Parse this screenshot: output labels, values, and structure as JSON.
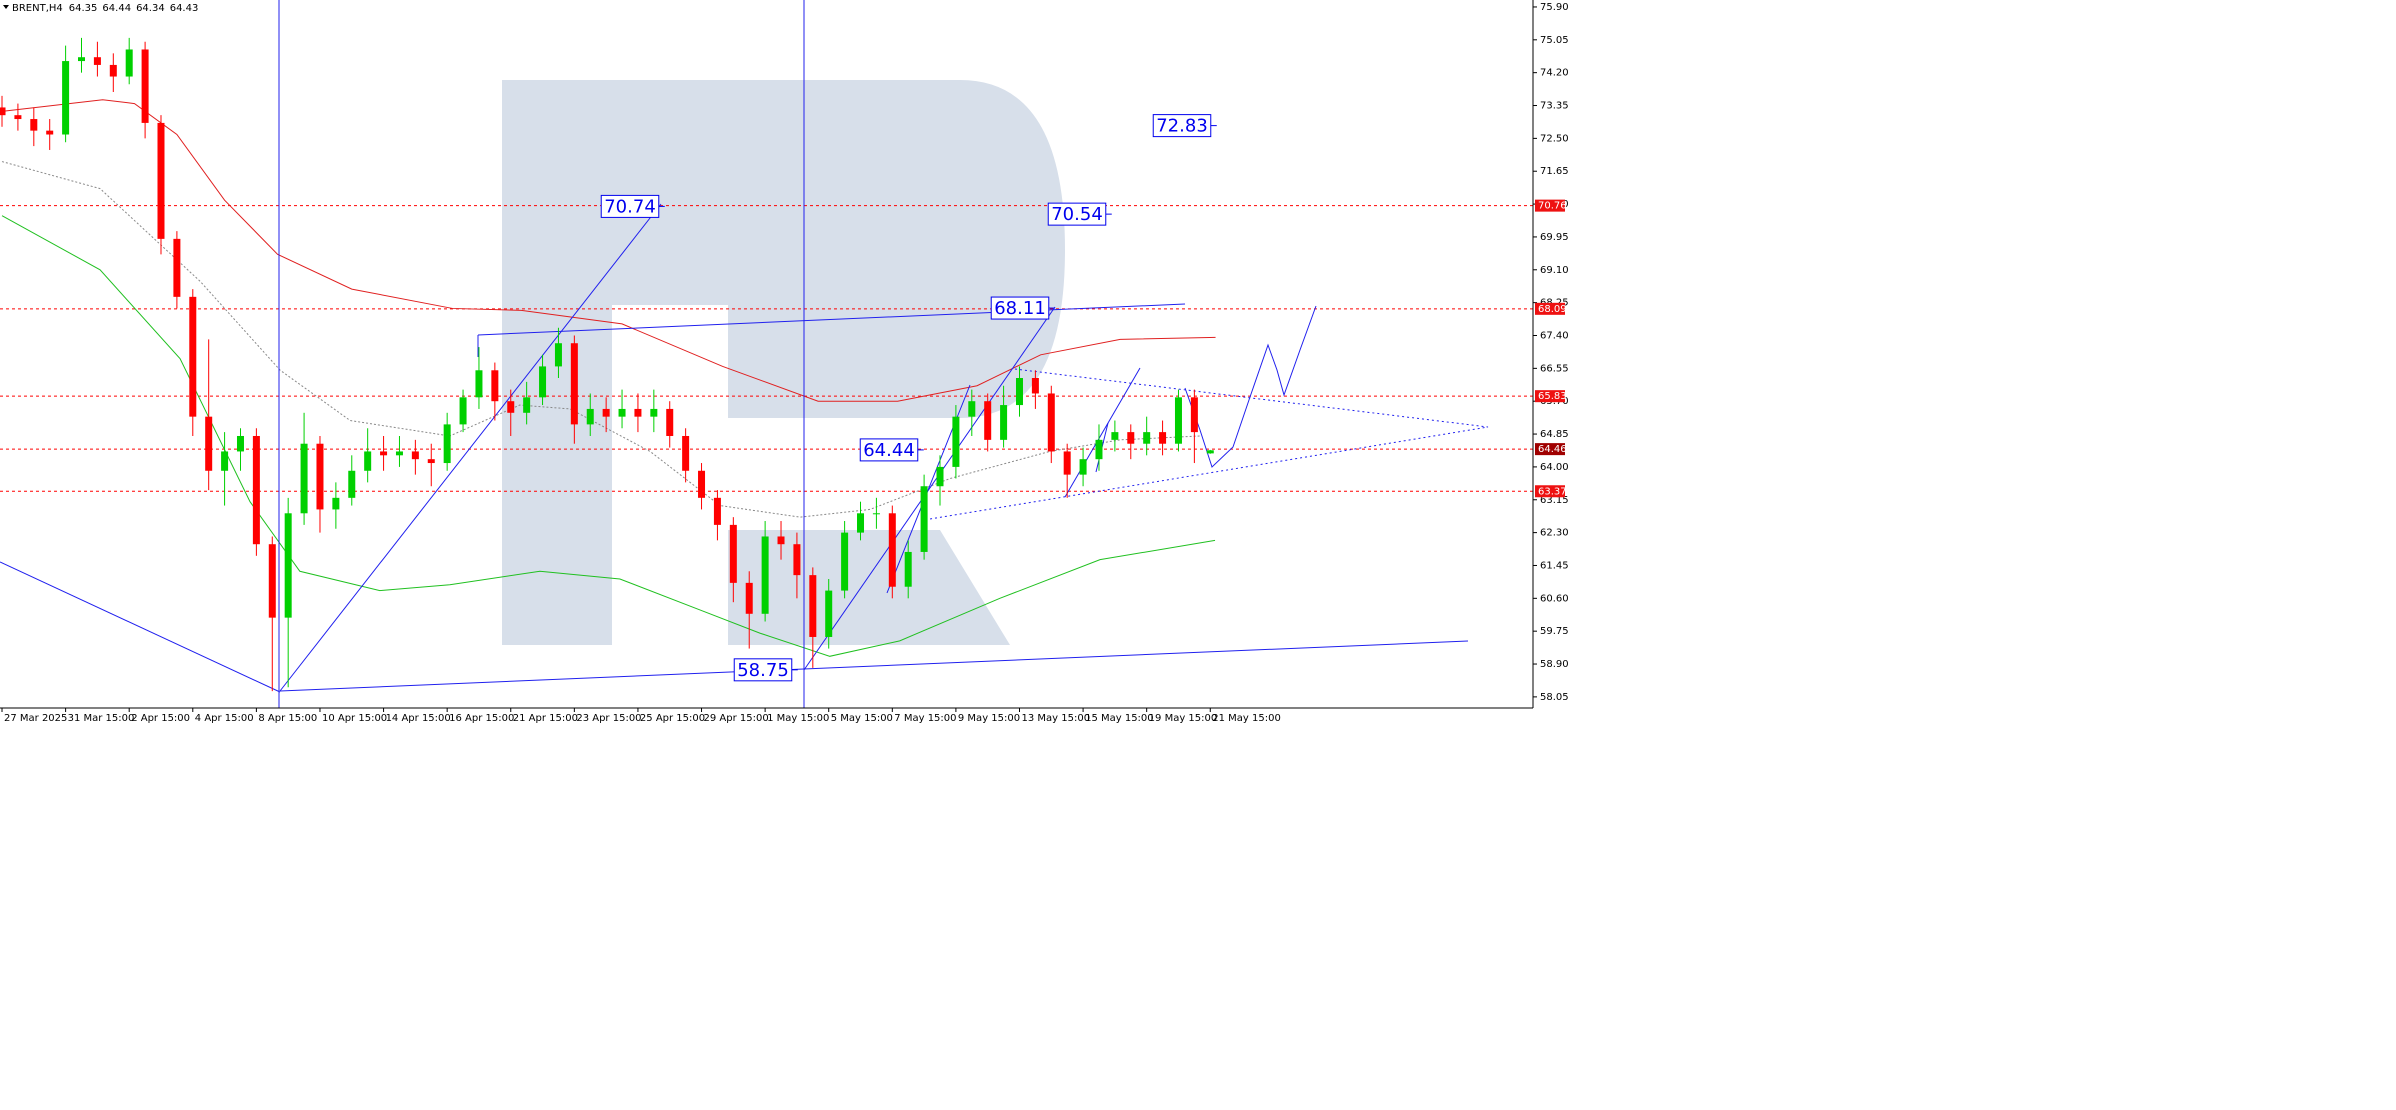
{
  "chart_data": {
    "type": "candlestick",
    "title": "BRENT,H4",
    "header_ohlc": [
      64.35,
      64.44,
      64.34,
      64.43
    ],
    "up_color": "#00d000",
    "down_color": "#ff0000",
    "x": [
      0,
      3,
      6,
      9,
      12,
      15,
      18,
      21,
      24,
      27,
      30,
      33,
      36,
      39,
      42,
      45,
      48,
      51,
      54,
      57,
      60,
      63,
      66,
      69,
      72,
      75,
      78,
      81,
      84,
      87,
      90,
      93,
      96,
      99,
      102,
      105,
      108,
      111,
      114,
      117,
      120,
      123,
      126,
      129,
      132,
      135,
      138,
      141,
      144,
      147,
      150,
      153,
      156,
      159,
      162,
      165,
      168,
      171,
      174,
      177,
      180,
      183,
      186,
      189,
      192,
      195,
      198,
      201,
      204,
      207,
      210,
      213,
      216,
      219,
      222,
      225,
      228
    ],
    "open": [
      73.3,
      73.1,
      73.0,
      72.7,
      72.6,
      74.5,
      74.6,
      74.4,
      74.1,
      74.8,
      72.9,
      69.9,
      68.4,
      65.3,
      63.9,
      64.4,
      64.8,
      62.0,
      60.1,
      62.8,
      64.6,
      62.9,
      63.2,
      63.9,
      64.4,
      64.3,
      64.4,
      64.2,
      64.1,
      65.1,
      65.8,
      66.5,
      65.7,
      65.4,
      65.8,
      66.6,
      67.2,
      65.1,
      65.5,
      65.3,
      65.5,
      65.3,
      65.5,
      64.8,
      63.9,
      63.2,
      62.5,
      61.0,
      60.2,
      62.2,
      62.0,
      61.2,
      59.6,
      60.8,
      62.3,
      62.8,
      62.8,
      60.9,
      61.8,
      63.5,
      64.0,
      65.3,
      65.7,
      64.7,
      65.6,
      66.3,
      65.9,
      64.4,
      63.8,
      64.2,
      64.7,
      64.9,
      64.6,
      64.9,
      64.6,
      65.8,
      64.35
    ],
    "high": [
      73.6,
      73.4,
      73.3,
      73.0,
      74.9,
      75.1,
      75.0,
      74.7,
      75.1,
      75.0,
      73.1,
      70.1,
      68.6,
      67.3,
      64.9,
      65.0,
      65.0,
      62.2,
      63.2,
      65.4,
      64.8,
      63.6,
      64.3,
      65.0,
      64.8,
      64.8,
      64.7,
      64.6,
      65.4,
      66.0,
      67.1,
      66.7,
      66.0,
      66.2,
      66.9,
      67.6,
      67.4,
      65.9,
      65.8,
      66.0,
      65.9,
      66.0,
      65.7,
      65.0,
      64.1,
      63.4,
      62.7,
      61.3,
      62.6,
      62.6,
      62.3,
      61.4,
      61.1,
      62.6,
      63.1,
      63.2,
      63.0,
      62.1,
      63.8,
      64.3,
      65.6,
      66.0,
      65.9,
      66.1,
      66.6,
      66.5,
      66.1,
      64.6,
      64.5,
      65.1,
      65.2,
      65.1,
      65.3,
      65.2,
      66.0,
      66.0,
      64.44
    ],
    "low": [
      72.8,
      72.7,
      72.3,
      72.2,
      72.4,
      74.2,
      74.1,
      73.7,
      73.9,
      72.5,
      69.5,
      68.1,
      64.8,
      63.4,
      63.0,
      63.9,
      61.7,
      58.2,
      58.3,
      62.5,
      62.3,
      62.4,
      63.0,
      63.6,
      63.9,
      64.0,
      63.8,
      63.5,
      63.9,
      64.9,
      65.5,
      65.2,
      64.8,
      65.1,
      65.6,
      66.3,
      64.6,
      64.8,
      64.9,
      65.0,
      64.9,
      64.9,
      64.5,
      63.6,
      62.9,
      62.1,
      60.5,
      59.3,
      60.0,
      61.6,
      60.6,
      58.8,
      59.3,
      60.6,
      62.1,
      62.4,
      60.6,
      60.6,
      61.6,
      63.0,
      63.7,
      64.8,
      64.4,
      64.5,
      65.3,
      65.5,
      64.1,
      63.2,
      63.5,
      63.9,
      64.4,
      64.2,
      64.3,
      64.3,
      64.4,
      64.1,
      64.34
    ],
    "close": [
      73.1,
      73.0,
      72.7,
      72.6,
      74.5,
      74.6,
      74.4,
      74.1,
      74.8,
      72.9,
      69.9,
      68.4,
      65.3,
      63.9,
      64.4,
      64.8,
      62.0,
      60.1,
      62.8,
      64.6,
      62.9,
      63.2,
      63.9,
      64.4,
      64.3,
      64.4,
      64.2,
      64.1,
      65.1,
      65.8,
      66.5,
      65.7,
      65.4,
      65.8,
      66.6,
      67.2,
      65.1,
      65.5,
      65.3,
      65.5,
      65.3,
      65.5,
      64.8,
      63.9,
      63.2,
      62.5,
      61.0,
      60.2,
      62.2,
      62.0,
      61.2,
      59.6,
      60.8,
      62.3,
      62.8,
      62.8,
      60.9,
      61.8,
      63.5,
      64.0,
      65.3,
      65.7,
      64.7,
      65.6,
      66.3,
      65.9,
      64.4,
      63.8,
      64.2,
      64.7,
      64.9,
      64.6,
      64.9,
      64.6,
      65.8,
      64.9,
      64.43
    ],
    "overlays": [
      {
        "color": "#e02020",
        "style": "solid",
        "x": [
          0,
          19,
          25,
          33,
          42,
          52,
          66,
          85,
          98,
          117,
          136,
          154,
          169,
          184,
          196,
          211,
          229
        ],
        "values": [
          73.2,
          73.5,
          73.4,
          72.6,
          70.9,
          69.5,
          68.6,
          68.1,
          68.05,
          67.7,
          66.6,
          65.7,
          65.7,
          66.1,
          66.9,
          67.3,
          67.35
        ]
      },
      {
        "color": "#20c020",
        "style": "solid",
        "x": [
          0,
          18.5,
          33.6,
          46.8,
          56.2,
          71.3,
          84.5,
          101.5,
          116.6,
          131.7,
          143,
          156.2,
          169.4,
          188.3,
          207.2,
          228.9
        ],
        "values": [
          70.5,
          69.1,
          66.8,
          63.1,
          61.3,
          60.8,
          60.95,
          61.3,
          61.1,
          60.3,
          59.7,
          59.1,
          59.5,
          60.6,
          61.6,
          62.1
        ]
      },
      {
        "color": "#888888",
        "style": "dotted",
        "x": [
          0,
          18.5,
          37.4,
          52.5,
          65.7,
          84.5,
          97.7,
          107.2,
          122.3,
          135.5,
          150.6,
          163.8,
          178.9,
          197.7,
          211,
          226
        ],
        "values": [
          71.9,
          71.2,
          68.8,
          66.5,
          65.2,
          64.8,
          65.6,
          65.5,
          64.4,
          63.0,
          62.7,
          62.9,
          63.7,
          64.4,
          64.7,
          64.8
        ]
      }
    ],
    "levels": [
      70.76,
      68.09,
      65.83,
      64.46,
      63.37
    ],
    "level_line_color": "#ff0000",
    "level_label_colors": [
      "#ee1111",
      "#ee1111",
      "#ee1111",
      "#a00000",
      "#ee1111"
    ],
    "targets": [
      70.74,
      72.83,
      70.54,
      68.11,
      64.44,
      58.75
    ],
    "target_color": "#0000ee",
    "xlim": [
      -0.38,
      288.9
    ],
    "ylim": [
      57.84,
      76.08
    ],
    "xticks": [
      {
        "value": 0,
        "label": "27 Mar 2025"
      },
      {
        "value": 12,
        "label": "31 Mar 15:00"
      },
      {
        "value": 24,
        "label": "2 Apr 15:00"
      },
      {
        "value": 36,
        "label": "4 Apr 15:00"
      },
      {
        "value": 48,
        "label": "8 Apr 15:00"
      },
      {
        "value": 60,
        "label": "10 Apr 15:00"
      },
      {
        "value": 72,
        "label": "14 Apr 15:00"
      },
      {
        "value": 84,
        "label": "16 Apr 15:00"
      },
      {
        "value": 96,
        "label": "21 Apr 15:00"
      },
      {
        "value": 108,
        "label": "23 Apr 15:00"
      },
      {
        "value": 120,
        "label": "25 Apr 15:00"
      },
      {
        "value": 132,
        "label": "29 Apr 15:00"
      },
      {
        "value": 144,
        "label": "1 May 15:00"
      },
      {
        "value": 156,
        "label": "5 May 15:00"
      },
      {
        "value": 168,
        "label": "7 May 15:00"
      },
      {
        "value": 180,
        "label": "9 May 15:00"
      },
      {
        "value": 192,
        "label": "13 May 15:00"
      },
      {
        "value": 204,
        "label": "15 May 15:00"
      },
      {
        "value": 216,
        "label": "19 May 15:00"
      },
      {
        "value": 228,
        "label": "21 May 15:00"
      }
    ],
    "yticks": [
      {
        "value": 75.9,
        "label": "75.90"
      },
      {
        "value": 75.05,
        "label": "75.05"
      },
      {
        "value": 74.2,
        "label": "74.20"
      },
      {
        "value": 73.35,
        "label": "73.35"
      },
      {
        "value": 72.5,
        "label": "72.50"
      },
      {
        "value": 71.65,
        "label": "71.65"
      },
      {
        "value": 70.8,
        "label": "70.80"
      },
      {
        "value": 69.95,
        "label": "69.95"
      },
      {
        "value": 69.1,
        "label": "69.10"
      },
      {
        "value": 68.25,
        "label": "68.25"
      },
      {
        "value": 67.4,
        "label": "67.40"
      },
      {
        "value": 66.55,
        "label": "66.55"
      },
      {
        "value": 65.7,
        "label": "65.70"
      },
      {
        "value": 64.85,
        "label": "64.85"
      },
      {
        "value": 64,
        "label": "64.00"
      },
      {
        "value": 63.15,
        "label": "63.15"
      },
      {
        "value": 62.3,
        "label": "62.30"
      },
      {
        "value": 61.45,
        "label": "61.45"
      },
      {
        "value": 60.6,
        "label": "60.60"
      },
      {
        "value": 59.75,
        "label": "59.75"
      },
      {
        "value": 58.9,
        "label": "58.90"
      },
      {
        "value": 58.05,
        "label": "58.05"
      }
    ]
  }
}
